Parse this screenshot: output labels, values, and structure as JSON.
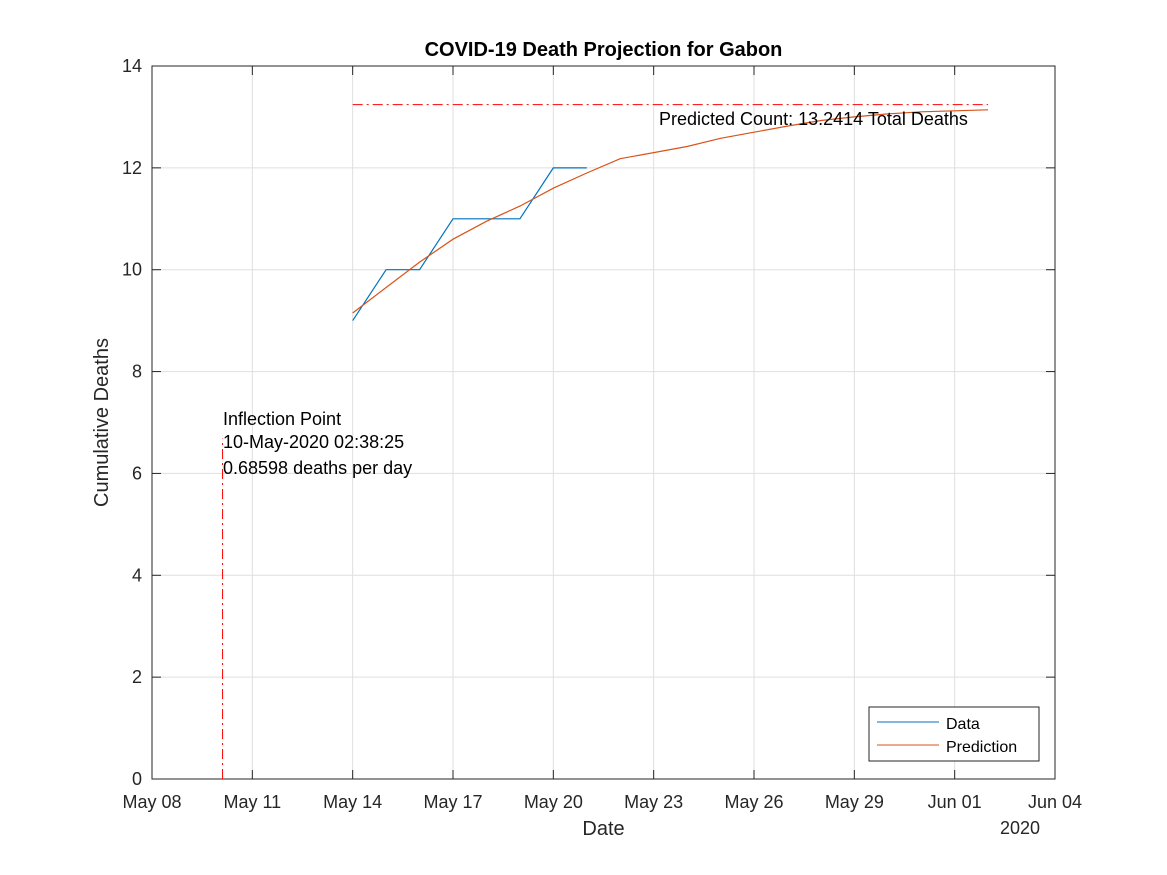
{
  "chart_data": {
    "type": "line",
    "title": "COVID-19 Death Projection for Gabon",
    "xlabel": "Date",
    "ylabel": "Cumulative Deaths",
    "x_axis_year_label": "2020",
    "x_tick_labels": [
      "May 08",
      "May 11",
      "May 14",
      "May 17",
      "May 20",
      "May 23",
      "May 26",
      "May 29",
      "Jun 01",
      "Jun 04"
    ],
    "x_tick_dates": [
      "2020-05-08",
      "2020-05-11",
      "2020-05-14",
      "2020-05-17",
      "2020-05-20",
      "2020-05-23",
      "2020-05-26",
      "2020-05-29",
      "2020-06-01",
      "2020-06-04"
    ],
    "xlim": [
      "2020-05-08",
      "2020-06-04"
    ],
    "ylim": [
      0,
      14
    ],
    "y_ticks": [
      0,
      2,
      4,
      6,
      8,
      10,
      12,
      14
    ],
    "grid": true,
    "legend_position": "bottom-right",
    "series": [
      {
        "name": "Data",
        "color": "#0072BD",
        "x": [
          "2020-05-14",
          "2020-05-15",
          "2020-05-16",
          "2020-05-17",
          "2020-05-18",
          "2020-05-19",
          "2020-05-20",
          "2020-05-21"
        ],
        "y": [
          9,
          10,
          10,
          11,
          11,
          11,
          12,
          12
        ]
      },
      {
        "name": "Prediction",
        "color": "#D95319",
        "x": [
          "2020-05-14",
          "2020-05-15",
          "2020-05-16",
          "2020-05-17",
          "2020-05-18",
          "2020-05-19",
          "2020-05-20",
          "2020-05-21",
          "2020-05-22",
          "2020-05-23",
          "2020-05-24",
          "2020-05-25",
          "2020-05-26",
          "2020-05-27",
          "2020-05-28",
          "2020-05-29",
          "2020-05-30",
          "2020-05-31",
          "2020-06-01",
          "2020-06-02"
        ],
        "y": [
          9.15,
          9.65,
          10.15,
          10.6,
          10.95,
          11.25,
          11.6,
          11.9,
          12.18,
          12.3,
          12.42,
          12.58,
          12.7,
          12.82,
          12.93,
          13.0,
          13.06,
          13.1,
          13.12,
          13.14
        ]
      }
    ],
    "reference_lines": [
      {
        "kind": "horizontal",
        "y": 13.2414,
        "x_start": "2020-05-14",
        "x_end": "2020-06-02",
        "color": "#FF0000",
        "style": "dash-dot"
      },
      {
        "kind": "vertical",
        "x": "2020-05-10",
        "y_start": 0,
        "y_end": 6.68598,
        "color": "#FF0000",
        "style": "dash-dot"
      }
    ],
    "annotations": {
      "predicted_count": "Predicted Count: 13.2414 Total Deaths",
      "inflection_title": "Inflection Point",
      "inflection_date": "10-May-2020 02:38:25",
      "inflection_rate": "0.68598 deaths per day"
    }
  }
}
